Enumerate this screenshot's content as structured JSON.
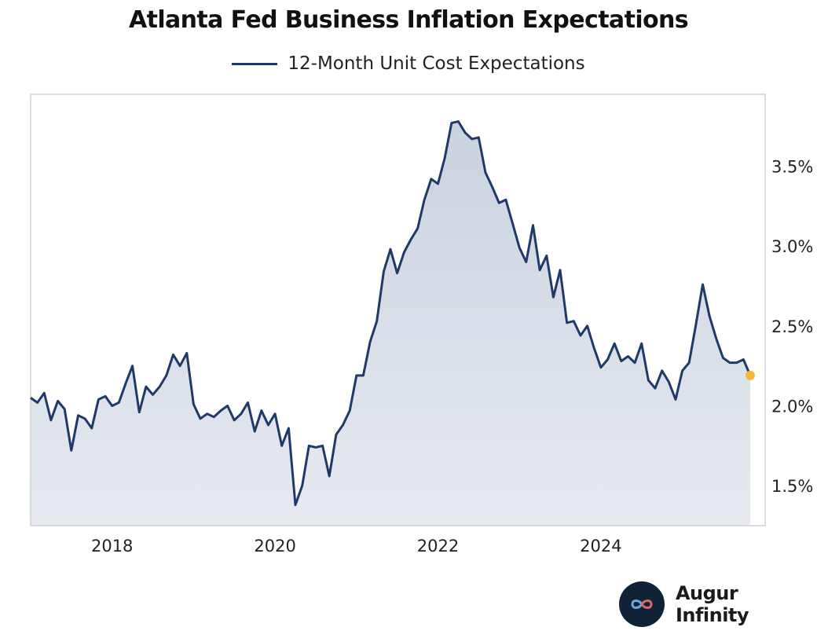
{
  "title": "Atlanta Fed Business Inflation Expectations",
  "brand": {
    "name": "Augur Infinity",
    "logo_icon": "infinity-icon"
  },
  "colors": {
    "line": "#1f3a68",
    "fill": "#c9d2de",
    "endpoint": "#f0b93a",
    "frame": "#d0d0d0",
    "text": "#222222"
  },
  "chart_data": {
    "type": "area",
    "title": "Atlanta Fed Business Inflation Expectations",
    "xlabel": "",
    "ylabel": "",
    "xlim": [
      2017.0,
      2025.92
    ],
    "ylim": [
      1.25,
      3.95
    ],
    "x_ticks": [
      {
        "value": 2018,
        "label": "2018"
      },
      {
        "value": 2020,
        "label": "2020"
      },
      {
        "value": 2022,
        "label": "2022"
      },
      {
        "value": 2024,
        "label": "2024"
      }
    ],
    "y_ticks": [
      {
        "value": 1.5,
        "label": "1.5%"
      },
      {
        "value": 2.0,
        "label": "2.0%"
      },
      {
        "value": 2.5,
        "label": "2.5%"
      },
      {
        "value": 3.0,
        "label": "3.0%"
      },
      {
        "value": 3.5,
        "label": "3.5%"
      }
    ],
    "y_axis_position": "right",
    "legend_position": "top-center",
    "grid": false,
    "series": [
      {
        "name": "12-Month Unit Cost Expectations",
        "x_start": 2017.0,
        "x_step": 0.0833333,
        "values": [
          2.05,
          2.02,
          2.08,
          1.91,
          2.03,
          1.98,
          1.72,
          1.94,
          1.92,
          1.86,
          2.04,
          2.06,
          2.0,
          2.02,
          2.14,
          2.25,
          1.96,
          2.12,
          2.07,
          2.12,
          2.19,
          2.32,
          2.25,
          2.33,
          2.01,
          1.92,
          1.95,
          1.93,
          1.97,
          2.0,
          1.91,
          1.95,
          2.02,
          1.84,
          1.97,
          1.88,
          1.95,
          1.75,
          1.86,
          1.38,
          1.5,
          1.75,
          1.74,
          1.75,
          1.56,
          1.82,
          1.88,
          1.97,
          2.19,
          2.19,
          2.4,
          2.53,
          2.84,
          2.98,
          2.83,
          2.96,
          3.04,
          3.11,
          3.29,
          3.42,
          3.39,
          3.55,
          3.77,
          3.78,
          3.71,
          3.67,
          3.68,
          3.46,
          3.37,
          3.27,
          3.29,
          3.14,
          2.99,
          2.9,
          3.13,
          2.85,
          2.94,
          2.68,
          2.85,
          2.52,
          2.53,
          2.44,
          2.5,
          2.36,
          2.24,
          2.29,
          2.39,
          2.28,
          2.31,
          2.27,
          2.39,
          2.16,
          2.11,
          2.22,
          2.15,
          2.04,
          2.22,
          2.27,
          2.51,
          2.76,
          2.56,
          2.42,
          2.3,
          2.27,
          2.27,
          2.29,
          2.19
        ]
      }
    ],
    "last_value": 2.19
  }
}
